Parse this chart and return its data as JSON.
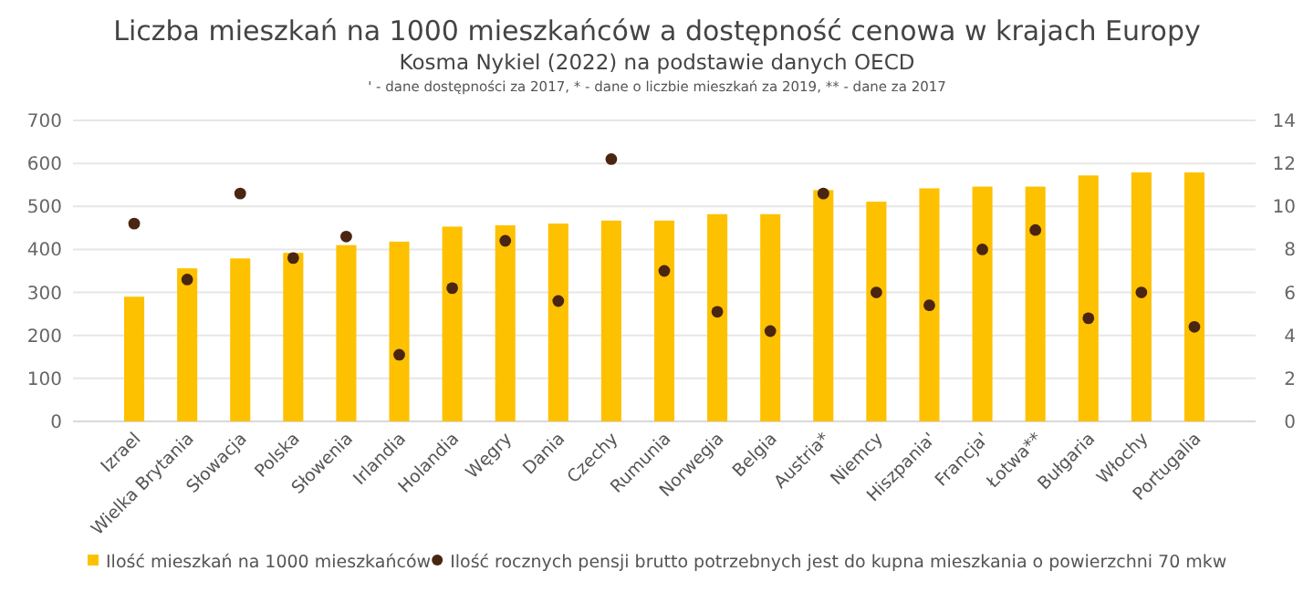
{
  "chart_data": {
    "type": "bar",
    "title": "Liczba mieszkań na 1000 mieszkańców a dostępność cenowa w krajach Europy",
    "subtitle": "Kosma Nykiel (2022) na podstawie danych OECD",
    "annotations": [
      "' - dane dostępności za 2017, * - dane o liczbie mieszkań za 2019, ** - dane za 2017"
    ],
    "categories": [
      "Izrael",
      "Wielka Brytania",
      "Słowacja",
      "Polska",
      "Słowenia",
      "Irlandia",
      "Holandia",
      "Węgry",
      "Dania",
      "Czechy",
      "Rumunia",
      "Norwegia",
      "Belgia",
      "Austria*",
      "Niemcy",
      "Hiszpania'",
      "Francja'",
      "Łotwa**",
      "Bułgaria",
      "Włochy",
      "Portugalia"
    ],
    "series": [
      {
        "name": "Ilość mieszkań na 1000 mieszkańców",
        "color": "#fdc100",
        "values": [
          290,
          356,
          379,
          392,
          410,
          418,
          453,
          456,
          460,
          467,
          467,
          482,
          482,
          538,
          511,
          542,
          546,
          546,
          572,
          579,
          579
        ]
      },
      {
        "name": "Ilość rocznych pensji brutto potrzebnych jest do kupna mieszkania o powierzchni 70 mkw",
        "type": "scatter",
        "axis": "y2",
        "color": "#4a2511",
        "marker": "circle",
        "values": [
          9.2,
          6.6,
          10.6,
          7.6,
          8.6,
          3.1,
          6.2,
          8.4,
          5.6,
          12.2,
          7.0,
          5.1,
          4.2,
          10.6,
          6.0,
          5.4,
          8.0,
          8.9,
          4.8,
          6.0,
          4.4
        ]
      }
    ],
    "ylim": [
      0,
      700
    ],
    "yticks": [
      0,
      100,
      200,
      300,
      400,
      500,
      600,
      700
    ],
    "y2lim": [
      0,
      14
    ],
    "y2ticks": [
      0,
      2,
      4,
      6,
      8,
      10,
      12,
      14
    ],
    "grid": "y",
    "legend": "bottom"
  }
}
